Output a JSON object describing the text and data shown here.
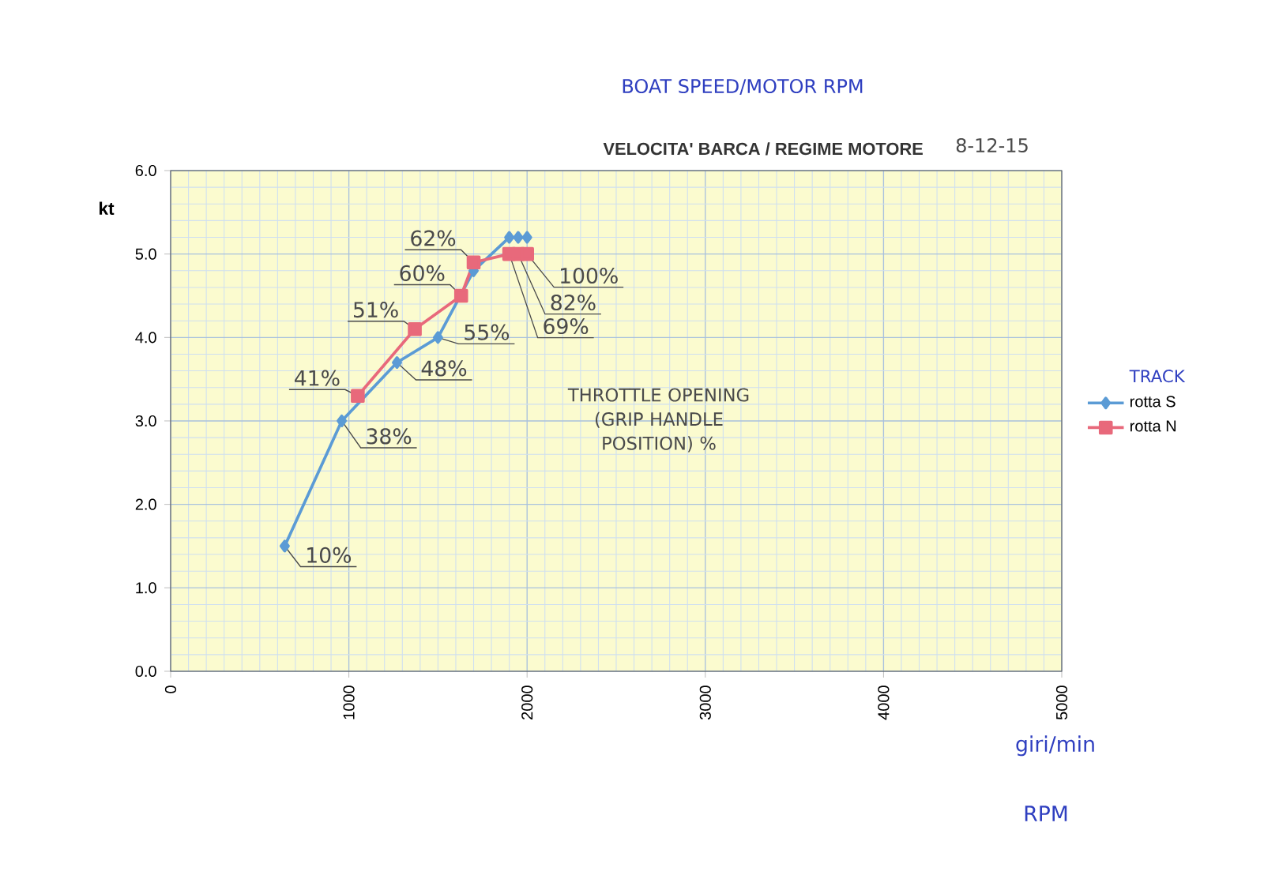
{
  "chart_data": {
    "type": "line",
    "title": "VELOCITA' BARCA / REGIME MOTORE",
    "subtitle": "BOAT SPEED/MOTOR RPM",
    "xlabel": "giri/min",
    "ylabel": "kt",
    "legend_title": "TRACK",
    "series": [
      {
        "name": "rotta S",
        "color": "#5b9bd5",
        "marker": "diamond",
        "x": [
          640,
          960,
          1270,
          1500,
          1700,
          1900,
          1950,
          2000
        ],
        "values": [
          1.5,
          3.0,
          3.7,
          4.0,
          4.8,
          5.2,
          5.2,
          5.2
        ]
      },
      {
        "name": "rotta N",
        "color": "#e8697b",
        "marker": "square",
        "x": [
          1050,
          1370,
          1630,
          1700,
          1900,
          1950,
          2000
        ],
        "values": [
          3.3,
          4.1,
          4.5,
          4.9,
          5.0,
          5.0,
          5.0
        ]
      }
    ],
    "xlim": [
      0,
      5000
    ],
    "xticks": [
      0,
      1000,
      2000,
      3000,
      4000,
      5000
    ],
    "ylim": [
      0,
      6
    ],
    "yticks": [
      {
        "value": 0,
        "label": "0.0"
      },
      {
        "value": 1,
        "label": "1.0"
      },
      {
        "value": 2,
        "label": "2.0"
      },
      {
        "value": 3,
        "label": "3.0"
      },
      {
        "value": 4,
        "label": "4.0"
      },
      {
        "value": 5,
        "label": "5.0"
      },
      {
        "value": 6,
        "label": "6.0"
      }
    ],
    "grid": true,
    "legend": "right",
    "annotations": [
      {
        "text": "10%",
        "x": 640,
        "y": 1.5
      },
      {
        "text": "38%",
        "x": 960,
        "y": 3.0
      },
      {
        "text": "48%",
        "x": 1270,
        "y": 3.7
      },
      {
        "text": "55%",
        "x": 1500,
        "y": 4.0
      },
      {
        "text": "41%",
        "x": 1050,
        "y": 3.3
      },
      {
        "text": "51%",
        "x": 1370,
        "y": 4.1
      },
      {
        "text": "60%",
        "x": 1630,
        "y": 4.5
      },
      {
        "text": "62%",
        "x": 1700,
        "y": 4.9
      },
      {
        "text": "69%",
        "x": 1900,
        "y": 5.0
      },
      {
        "text": "82%",
        "x": 1950,
        "y": 5.0
      },
      {
        "text": "100%",
        "x": 2000,
        "y": 5.0
      },
      "8-12-15",
      "THROTTLE OPENING (GRIP HANDLE POSITION) %",
      "RPM"
    ]
  }
}
